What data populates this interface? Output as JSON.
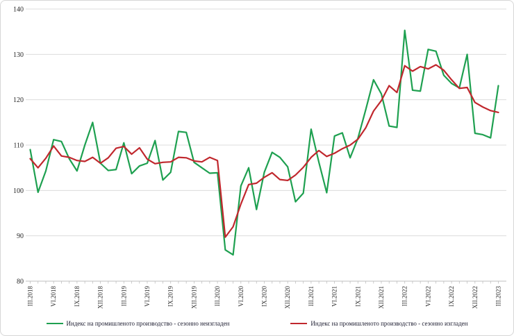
{
  "chart_data": {
    "type": "line",
    "title": "",
    "xlabel": "",
    "ylabel": "",
    "ylim": [
      80,
      140
    ],
    "y_ticks": [
      80,
      90,
      100,
      110,
      120,
      130,
      140
    ],
    "grid": "horizontal-only",
    "legend_position": "bottom",
    "x": [
      "III.2018",
      "IV.2018",
      "V.2018",
      "VI.2018",
      "VII.2018",
      "VIII.2018",
      "IX.2018",
      "X.2018",
      "XI.2018",
      "XII.2018",
      "I.2019",
      "II.2019",
      "III.2019",
      "IV.2019",
      "V.2019",
      "VI.2019",
      "VII.2019",
      "VIII.2019",
      "IX.2019",
      "X.2019",
      "XI.2019",
      "XII.2019",
      "I.2020",
      "II.2020",
      "III.2020",
      "IV.2020",
      "V.2020",
      "VI.2020",
      "VII.2020",
      "VIII.2020",
      "IX.2020",
      "X.2020",
      "XI.2020",
      "XII.2020",
      "I.2021",
      "II.2021",
      "III.2021",
      "IV.2021",
      "V.2021",
      "VI.2021",
      "VII.2021",
      "VIII.2021",
      "IX.2021",
      "X.2021",
      "XI.2021",
      "XII.2021",
      "I.2022",
      "II.2022",
      "III.2022",
      "IV.2022",
      "V.2022",
      "VI.2022",
      "VII.2022",
      "VIII.2022",
      "IX.2022",
      "X.2022",
      "XI.2022",
      "XII.2022",
      "I.2023",
      "II.2023",
      "III.2023"
    ],
    "x_visible_tick_labels": [
      "III.2018",
      "VI.2018",
      "IX.2018",
      "XII.2018",
      "III.2019",
      "VI.2019",
      "IX.2019",
      "XII.2019",
      "III.2020",
      "VI.2020",
      "IX.2020",
      "XII.2020",
      "III.2021",
      "VI.2021",
      "IX.2021",
      "XII.2021",
      "III.2022",
      "VI.2022",
      "IX.2022",
      "XII.2022",
      "III.2023"
    ],
    "x_label_every_n_months": 3,
    "series": [
      {
        "name": "Индекс на промишленото производство -  сезонно  неизгладен",
        "color": "#1ea050",
        "values": [
          109.0,
          99.6,
          104.3,
          111.2,
          110.8,
          107.0,
          104.3,
          110.0,
          115.0,
          106.0,
          104.4,
          104.6,
          110.5,
          103.7,
          105.4,
          106.0,
          111.0,
          102.3,
          104.0,
          113.0,
          112.8,
          106.2,
          105.0,
          103.8,
          103.9,
          86.9,
          85.8,
          101.0,
          105.0,
          95.8,
          104.0,
          108.4,
          107.3,
          105.2,
          97.5,
          99.4,
          113.5,
          106.2,
          99.5,
          112.0,
          112.7,
          107.2,
          111.5,
          117.8,
          124.4,
          121.3,
          114.2,
          113.9,
          135.3,
          122.1,
          121.9,
          131.1,
          130.7,
          125.4,
          123.6,
          122.6,
          130.0,
          112.6,
          112.3,
          111.6,
          123.1
        ]
      },
      {
        "name": "Индекс  на промишленото  производство  - сезонно изгладен",
        "color": "#c0272d",
        "values": [
          107.0,
          105.0,
          107.1,
          109.8,
          107.6,
          107.3,
          106.6,
          106.4,
          107.3,
          106.0,
          107.2,
          109.3,
          109.7,
          108.0,
          109.4,
          106.9,
          105.9,
          106.2,
          106.3,
          107.3,
          107.2,
          106.5,
          106.3,
          107.3,
          106.6,
          89.7,
          92.0,
          97.0,
          101.3,
          101.6,
          102.9,
          103.9,
          102.4,
          102.2,
          103.4,
          105.1,
          107.3,
          108.8,
          107.5,
          108.2,
          109.2,
          110.0,
          111.3,
          113.8,
          117.5,
          119.8,
          123.1,
          121.6,
          127.5,
          126.3,
          127.3,
          126.8,
          127.7,
          126.5,
          124.4,
          122.5,
          122.7,
          119.4,
          118.4,
          117.6,
          117.2
        ]
      }
    ],
    "colors": {
      "gridline": "#dcdcdc",
      "axis_line": "#bfbfbf",
      "tick": "#bfbfbf",
      "background": "#ffffff",
      "border": "#d6d6d6"
    }
  }
}
